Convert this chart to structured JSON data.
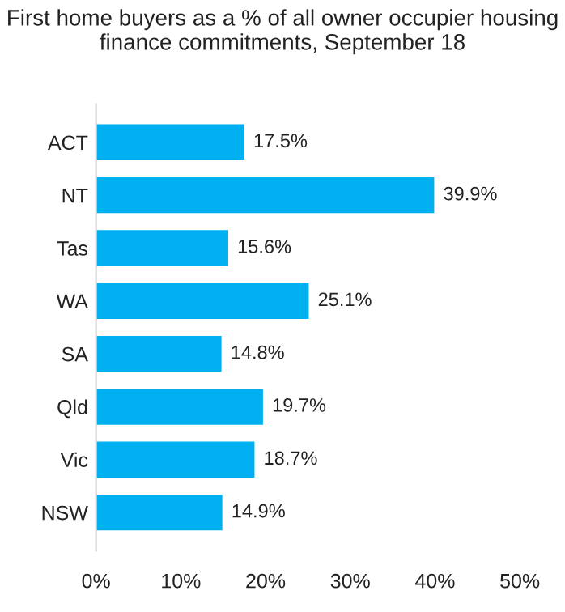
{
  "chart_data": {
    "type": "bar",
    "orientation": "horizontal",
    "title": "First home buyers as a % of all owner occupier housing finance commitments, September 18",
    "categories": [
      "ACT",
      "NT",
      "Tas",
      "WA",
      "SA",
      "Qld",
      "Vic",
      "NSW"
    ],
    "values": [
      17.5,
      39.9,
      15.6,
      25.1,
      14.8,
      19.7,
      18.7,
      14.9
    ],
    "value_labels": [
      "17.5%",
      "39.9%",
      "15.6%",
      "25.1%",
      "14.8%",
      "19.7%",
      "18.7%",
      "14.9%"
    ],
    "color": "#00b0f0",
    "xlim": [
      0,
      50
    ],
    "xticks": [
      {
        "value": 0,
        "label": "0%"
      },
      {
        "value": 10,
        "label": "10%"
      },
      {
        "value": 20,
        "label": "20%"
      },
      {
        "value": 30,
        "label": "30%"
      },
      {
        "value": 40,
        "label": "40%"
      },
      {
        "value": 50,
        "label": "50%"
      }
    ],
    "grid": false,
    "legend": false
  }
}
